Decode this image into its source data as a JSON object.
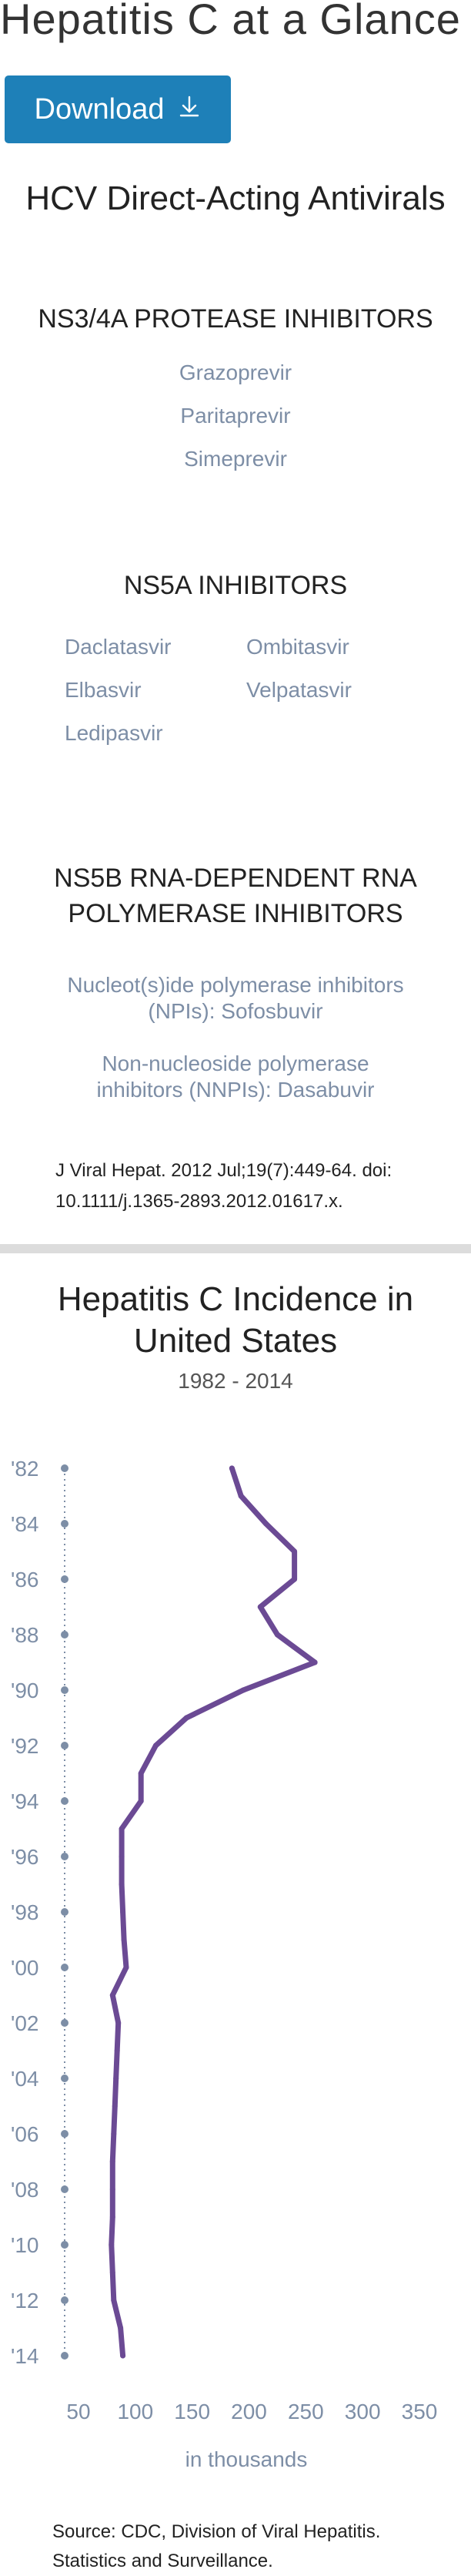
{
  "header": {
    "title": "Hepatitis C at a Glance",
    "download_label": "Download"
  },
  "antivirals": {
    "title": "HCV Direct-Acting Antivirals",
    "ns34a": {
      "title": "NS3/4A PROTEASE INHIBITORS",
      "drugs": [
        "Grazoprevir",
        "Paritaprevir",
        "Simeprevir"
      ]
    },
    "ns5a": {
      "title": "NS5A INHIBITORS",
      "drugs": [
        "Daclatasvir",
        "Ombitasvir",
        "Elbasvir",
        "Velpatasvir",
        "Ledipasvir"
      ]
    },
    "ns5b": {
      "title_line1": "NS5B RNA-DEPENDENT RNA",
      "title_line2": "POLYMERASE INHIBITORS",
      "npi_line1": "Nucleot(s)ide polymerase inhibitors",
      "npi_line2": "(NPIs): Sofosbuvir",
      "nnpi_line1": "Non-nucleoside polymerase",
      "nnpi_line2": "inhibitors (NNPIs): Dasabuvir"
    },
    "citation_line1": "J Viral Hepat. 2012 Jul;19(7):449-64. doi:",
    "citation_line2": "10.1111/j.1365-2893.2012.01617.x."
  },
  "chart_data": {
    "type": "line",
    "title_line1": "Hepatitis C Incidence in",
    "title_line2": "United States",
    "subtitle": "1982 - 2014",
    "xlabel": "in thousands",
    "ylabel": "",
    "orientation": "vertical-time",
    "xlim": [
      50,
      350
    ],
    "x_ticks": [
      50,
      100,
      150,
      200,
      250,
      300,
      350
    ],
    "y_tick_labels": [
      "'82",
      "'84",
      "'86",
      "'88",
      "'90",
      "'92",
      "'94",
      "'96",
      "'98",
      "'00",
      "'02",
      "'04",
      "'06",
      "'08",
      "'10",
      "'12",
      "'14"
    ],
    "years": [
      1982,
      1983,
      1984,
      1985,
      1986,
      1987,
      1988,
      1989,
      1990,
      1991,
      1992,
      1993,
      1994,
      1995,
      1996,
      1997,
      1998,
      1999,
      2000,
      2001,
      2002,
      2003,
      2004,
      2005,
      2006,
      2007,
      2008,
      2009,
      2010,
      2011,
      2012,
      2013,
      2014
    ],
    "values": [
      185,
      193,
      215,
      240,
      240,
      210,
      225,
      258,
      195,
      145,
      118,
      105,
      105,
      88,
      88,
      88,
      89,
      90,
      92,
      80,
      85,
      84,
      83,
      82,
      81,
      80,
      80,
      80,
      79,
      80,
      81,
      87,
      89
    ],
    "line_color": "#6b4a94",
    "axis_color": "#7d8ea6",
    "grid": false
  },
  "source": {
    "line1": "Source: CDC, Division of Viral Hepatitis.",
    "line2": "Statistics and Surveillance."
  }
}
